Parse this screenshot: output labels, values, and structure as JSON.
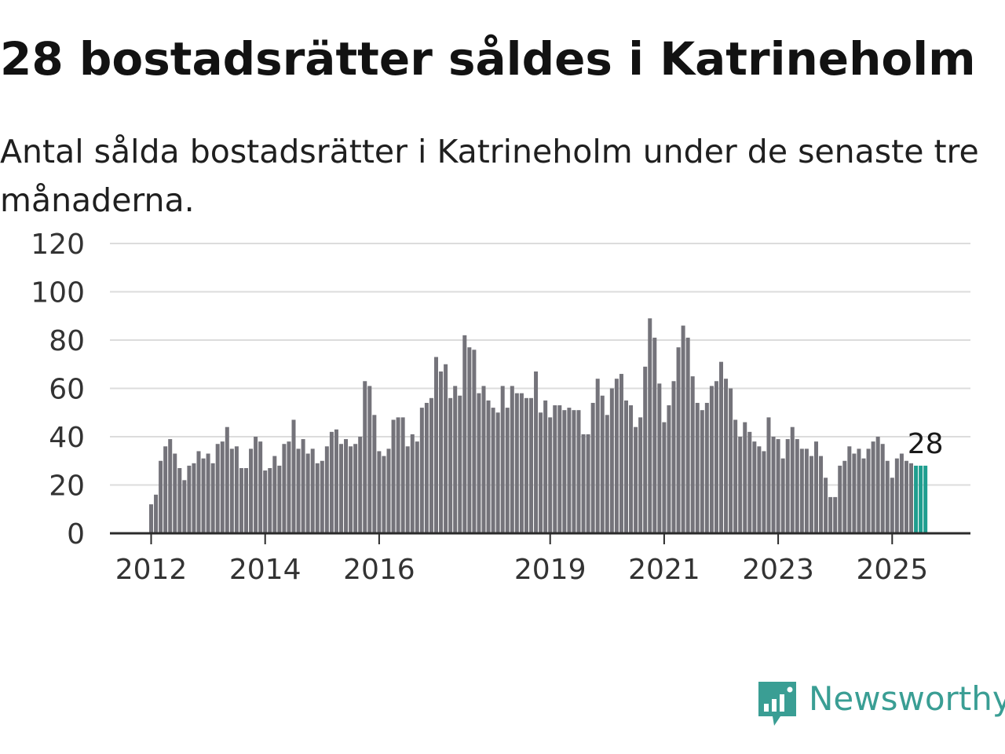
{
  "header": {
    "title": "28 bostadsrätter såldes i Katrineholm",
    "subtitle": "Antal sålda bostadsrätter i Katrineholm under de senaste tre månaderna."
  },
  "brand": {
    "name": "Newsworthy",
    "icon": "newsworthy-logo-icon",
    "color": "#3a9e94"
  },
  "chart_data": {
    "type": "bar",
    "x_start": "2012-01",
    "x_end": "2025-08",
    "interval": "month",
    "ylim": [
      0,
      120
    ],
    "yticks": [
      "0",
      "20",
      "40",
      "60",
      "80",
      "100",
      "120"
    ],
    "xtick_labels": [
      {
        "label": "2012",
        "date": "2012-01"
      },
      {
        "label": "2014",
        "date": "2014-01"
      },
      {
        "label": "2016",
        "date": "2016-01"
      },
      {
        "label": "2019",
        "date": "2019-01"
      },
      {
        "label": "2021",
        "date": "2021-01"
      },
      {
        "label": "2023",
        "date": "2023-01"
      },
      {
        "label": "2025",
        "date": "2025-01"
      }
    ],
    "values": [
      12,
      16,
      30,
      36,
      39,
      33,
      27,
      22,
      28,
      29,
      34,
      31,
      33,
      29,
      37,
      38,
      44,
      35,
      36,
      27,
      27,
      35,
      40,
      38,
      26,
      27,
      32,
      28,
      37,
      38,
      47,
      35,
      39,
      33,
      35,
      29,
      30,
      36,
      42,
      43,
      37,
      39,
      36,
      37,
      40,
      63,
      61,
      49,
      34,
      32,
      35,
      47,
      48,
      48,
      36,
      41,
      38,
      52,
      54,
      56,
      73,
      67,
      70,
      56,
      61,
      57,
      82,
      77,
      76,
      58,
      61,
      55,
      52,
      50,
      61,
      52,
      61,
      58,
      58,
      56,
      56,
      67,
      50,
      55,
      48,
      53,
      53,
      51,
      52,
      51,
      51,
      41,
      41,
      54,
      64,
      57,
      49,
      60,
      64,
      66,
      55,
      53,
      44,
      48,
      69,
      89,
      81,
      62,
      46,
      53,
      63,
      77,
      86,
      81,
      65,
      54,
      51,
      54,
      61,
      63,
      71,
      64,
      60,
      47,
      40,
      46,
      42,
      38,
      36,
      34,
      48,
      40,
      39,
      31,
      39,
      44,
      39,
      35,
      35,
      32,
      38,
      32,
      23,
      15,
      15,
      28,
      30,
      36,
      33,
      35,
      31,
      35,
      38,
      40,
      37,
      30,
      23,
      31,
      33,
      30,
      29,
      28,
      28,
      28
    ],
    "highlight_last": 3,
    "bar_color": "#74737a",
    "highlight_color": "#1f9e8f",
    "annotation": {
      "text": "28"
    },
    "grid": true,
    "legend": "none"
  }
}
